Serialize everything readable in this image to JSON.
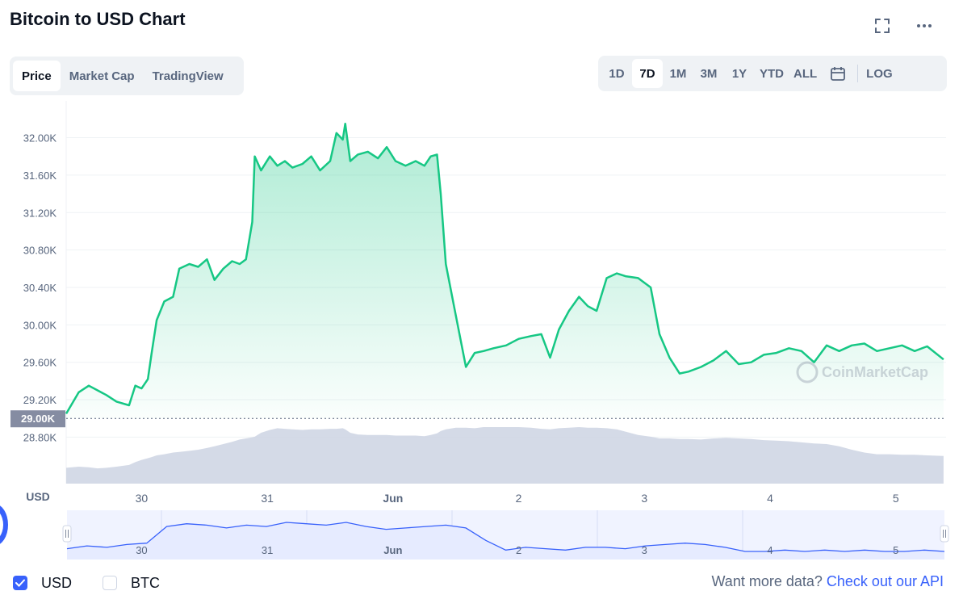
{
  "header": {
    "title": "Bitcoin to USD Chart"
  },
  "icons": {
    "fullscreen": "fullscreen-icon",
    "more": "more-horizontal-icon",
    "calendar": "calendar-icon"
  },
  "tabs": [
    {
      "label": "Price",
      "active": true
    },
    {
      "label": "Market Cap",
      "active": false
    },
    {
      "label": "TradingView",
      "active": false
    }
  ],
  "ranges": [
    {
      "label": "1D",
      "active": false
    },
    {
      "label": "7D",
      "active": true
    },
    {
      "label": "1M",
      "active": false
    },
    {
      "label": "3M",
      "active": false
    },
    {
      "label": "1Y",
      "active": false
    },
    {
      "label": "YTD",
      "active": false
    },
    {
      "label": "ALL",
      "active": false
    }
  ],
  "log_label": "LOG",
  "watermark": "CoinMarketCap",
  "colors": {
    "line": "#16c784",
    "volume": "#cfd6e4",
    "accent": "#3861fb",
    "navigator_line": "#3861fb",
    "navigator_fill": "#e6ebff"
  },
  "chart_data": {
    "type": "line",
    "ylabel": "USD",
    "x_ticks": [
      "30",
      "31",
      "Jun",
      "2",
      "3",
      "4",
      "5"
    ],
    "y_ticks": [
      "28.80K",
      "29.20K",
      "29.60K",
      "30.00K",
      "30.40K",
      "30.80K",
      "31.20K",
      "31.60K",
      "32.00K"
    ],
    "y_tick_values": [
      28800,
      29200,
      29600,
      30000,
      30400,
      30800,
      31200,
      31600,
      32000
    ],
    "ylim": [
      28700,
      32350
    ],
    "xlim": [
      29.4,
      36.4
    ],
    "reference_line": {
      "value": 29000,
      "label": "29.00K"
    },
    "grid": true,
    "series": [
      {
        "x": [
          29.4,
          29.5,
          29.58,
          29.65,
          29.72,
          29.8,
          29.9,
          29.95,
          30.0,
          30.05,
          30.08,
          30.12,
          30.18,
          30.25,
          30.3,
          30.38,
          30.45,
          30.52,
          30.58,
          30.65,
          30.72,
          30.78,
          30.83,
          30.88,
          30.9,
          30.95,
          31.02,
          31.08,
          31.14,
          31.2,
          31.28,
          31.35,
          31.42,
          31.5,
          31.55,
          31.6,
          31.62,
          31.66,
          31.72,
          31.8,
          31.88,
          31.95,
          32.02,
          32.1,
          32.18,
          32.25,
          32.3,
          32.35,
          32.38,
          32.42,
          32.5,
          32.58,
          32.65,
          32.72,
          32.8,
          32.9,
          33.0,
          33.1,
          33.18,
          33.25,
          33.32,
          33.4,
          33.48,
          33.55,
          33.62,
          33.7,
          33.78,
          33.85,
          33.95,
          34.05,
          34.12,
          34.2,
          34.28,
          34.35,
          34.45,
          34.55,
          34.65,
          34.75,
          34.85,
          34.95,
          35.05,
          35.15,
          35.25,
          35.35,
          35.45,
          35.55,
          35.65,
          35.75,
          35.85,
          35.95,
          36.05,
          36.15,
          36.25,
          36.38
        ],
        "values": [
          29050,
          29280,
          29350,
          29300,
          29250,
          29180,
          29140,
          29350,
          29320,
          29420,
          29700,
          30050,
          30250,
          30300,
          30600,
          30650,
          30620,
          30700,
          30480,
          30600,
          30680,
          30650,
          30700,
          31100,
          31800,
          31650,
          31800,
          31700,
          31750,
          31680,
          31720,
          31800,
          31650,
          31750,
          32050,
          31980,
          32150,
          31750,
          31820,
          31850,
          31780,
          31900,
          31750,
          31700,
          31750,
          31700,
          31800,
          31820,
          31400,
          30650,
          30100,
          29550,
          29700,
          29720,
          29750,
          29780,
          29850,
          29880,
          29900,
          29650,
          29950,
          30150,
          30300,
          30200,
          30150,
          30500,
          30550,
          30520,
          30500,
          30400,
          29900,
          29650,
          29480,
          29500,
          29550,
          29620,
          29720,
          29580,
          29600,
          29680,
          29700,
          29750,
          29720,
          29600,
          29780,
          29720,
          29780,
          29800,
          29720,
          29750,
          29780,
          29720,
          29770,
          29630
        ],
        "volume": [
          0.28,
          0.3,
          0.29,
          0.27,
          0.28,
          0.3,
          0.33,
          0.38,
          0.42,
          0.45,
          0.47,
          0.5,
          0.52,
          0.55,
          0.56,
          0.58,
          0.6,
          0.63,
          0.66,
          0.7,
          0.74,
          0.78,
          0.8,
          0.82,
          0.83,
          0.9,
          0.95,
          0.98,
          0.97,
          0.96,
          0.95,
          0.96,
          0.96,
          0.97,
          0.97,
          0.98,
          0.96,
          0.9,
          0.87,
          0.86,
          0.86,
          0.86,
          0.85,
          0.85,
          0.85,
          0.84,
          0.86,
          0.89,
          0.93,
          0.96,
          0.99,
          0.99,
          0.98,
          1.0,
          1.0,
          1.0,
          1.0,
          0.99,
          0.97,
          0.96,
          0.98,
          0.99,
          1.0,
          0.99,
          0.99,
          0.98,
          0.96,
          0.92,
          0.86,
          0.83,
          0.8,
          0.8,
          0.79,
          0.79,
          0.78,
          0.8,
          0.81,
          0.8,
          0.79,
          0.77,
          0.76,
          0.75,
          0.73,
          0.71,
          0.7,
          0.66,
          0.6,
          0.55,
          0.52,
          0.52,
          0.51,
          0.51,
          0.5,
          0.49
        ]
      }
    ]
  },
  "navigator": {
    "labels": [
      "30",
      "31",
      "Jun",
      "2",
      "3",
      "4",
      "5"
    ],
    "values": [
      29100,
      29200,
      29150,
      29250,
      29300,
      29900,
      30000,
      29950,
      29850,
      29950,
      29900,
      30050,
      30000,
      29950,
      30050,
      29900,
      29800,
      29850,
      29900,
      29950,
      29850,
      29400,
      29050,
      29150,
      29100,
      29050,
      29150,
      29150,
      29100,
      29200,
      29250,
      29300,
      29250,
      29150,
      29000,
      29000,
      29050,
      29000,
      29050,
      29000,
      29050,
      29000,
      29000,
      29050,
      29000
    ]
  },
  "footer": {
    "options": [
      {
        "label": "USD",
        "checked": true
      },
      {
        "label": "BTC",
        "checked": false
      }
    ],
    "more_text": "Want more data?",
    "more_link": "Check out our API"
  }
}
